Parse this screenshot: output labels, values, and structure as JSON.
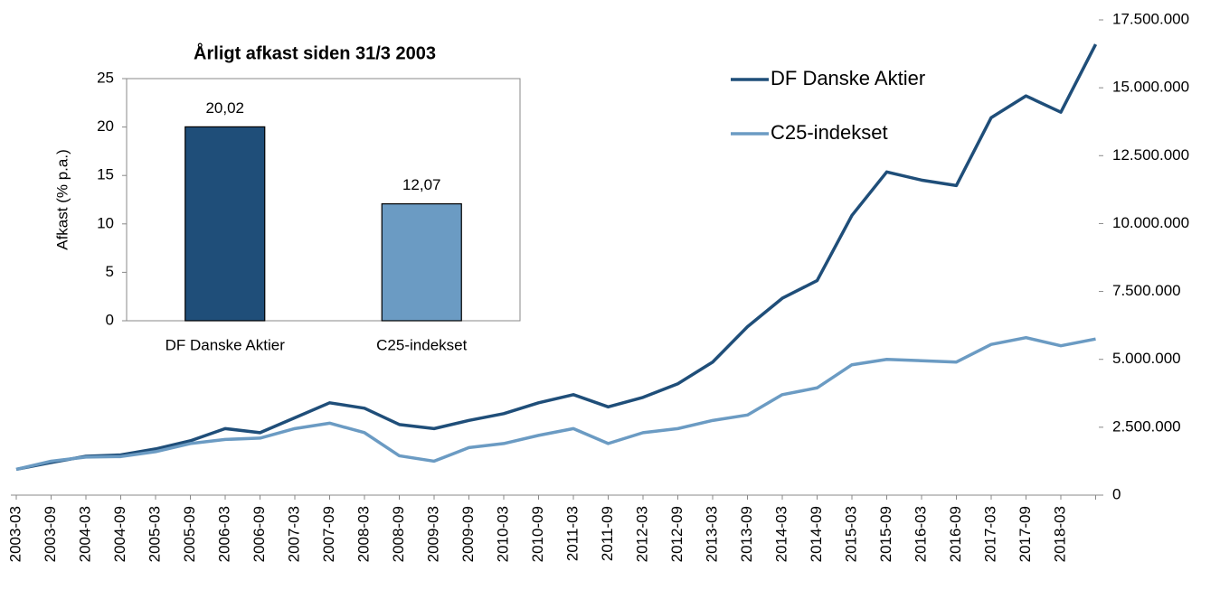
{
  "chart_data": [
    {
      "type": "line",
      "categories": [
        "2003-03",
        "2003-09",
        "2004-03",
        "2004-09",
        "2005-03",
        "2005-09",
        "2006-03",
        "2006-09",
        "2007-03",
        "2007-09",
        "2008-03",
        "2008-09",
        "2009-03",
        "2009-09",
        "2010-03",
        "2010-09",
        "2011-03",
        "2011-09",
        "2012-03",
        "2012-09",
        "2013-03",
        "2013-09",
        "2014-03",
        "2014-09",
        "2015-03",
        "2015-09",
        "2016-03",
        "2016-09",
        "2017-03",
        "2017-09",
        "2018-03",
        null
      ],
      "series": [
        {
          "name": "DF Danske Aktier",
          "color": "#1f4e79",
          "values": [
            950000,
            1200000,
            1430000,
            1480000,
            1700000,
            2000000,
            2450000,
            2300000,
            2850000,
            3400000,
            3200000,
            2600000,
            2450000,
            2750000,
            3000000,
            3400000,
            3700000,
            3250000,
            3600000,
            4100000,
            4900000,
            6200000,
            7250000,
            7900000,
            10300000,
            11900000,
            11600000,
            11400000,
            13900000,
            14700000,
            14100000,
            16600000
          ]
        },
        {
          "name": "C25-indekset",
          "color": "#6b9bc3",
          "values": [
            950000,
            1250000,
            1400000,
            1420000,
            1600000,
            1900000,
            2050000,
            2100000,
            2450000,
            2650000,
            2300000,
            1450000,
            1250000,
            1750000,
            1900000,
            2200000,
            2450000,
            1900000,
            2300000,
            2450000,
            2750000,
            2950000,
            3700000,
            3950000,
            4800000,
            5000000,
            4950000,
            4900000,
            5550000,
            5800000,
            5500000,
            5750000
          ]
        }
      ],
      "ylim": [
        0,
        17500000
      ],
      "yticks": [
        0,
        {
          "value": 2500000,
          "label": "2.500.000"
        },
        {
          "value": 5000000,
          "label": "5.000.000"
        },
        {
          "value": 7500000,
          "label": "7.500.000"
        },
        {
          "value": 10000000,
          "label": "10.000.000"
        },
        {
          "value": 12500000,
          "label": "12.500.000"
        },
        {
          "value": 15000000,
          "label": "15.000.000"
        },
        {
          "value": 17500000,
          "label": "17.500.000"
        }
      ],
      "legend": "upper right"
    },
    {
      "type": "bar",
      "title": "Årligt afkast siden 31/3 2003",
      "ylabel": "Afkast (% p.a.)",
      "categories": [
        "DF Danske Aktier",
        "C25-indekset"
      ],
      "values": [
        20.02,
        12.07
      ],
      "value_labels": [
        "20,02",
        "12,07"
      ],
      "colors": [
        "#1f4e79",
        "#6b9bc3"
      ],
      "ylim": [
        0,
        25
      ],
      "yticks": [
        0,
        5,
        10,
        15,
        20,
        25
      ]
    }
  ]
}
